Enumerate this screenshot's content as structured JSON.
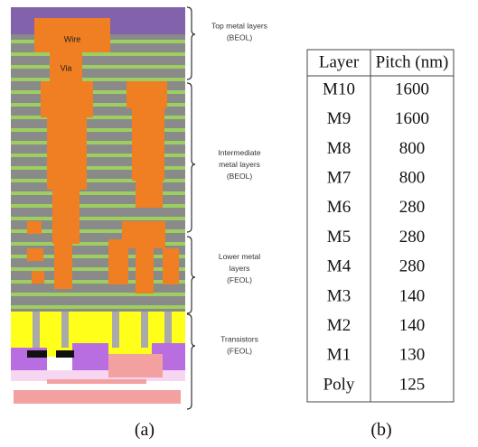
{
  "figure_a": {
    "wire_label": "Wire",
    "via_label": "Via",
    "groups": [
      {
        "lines": [
          "Top metal layers",
          "(BEOL)"
        ]
      },
      {
        "lines": [
          "Intermediate",
          "metal layers",
          "(BEOL)"
        ]
      },
      {
        "lines": [
          "Lower metal",
          "layers",
          "(FEOL)"
        ]
      },
      {
        "lines": [
          "Transistors",
          "(FEOL)"
        ]
      }
    ],
    "caption": "(a)"
  },
  "table": {
    "header": [
      "Layer",
      "Pitch (nm)"
    ],
    "rows": [
      [
        "M10",
        "1600"
      ],
      [
        "M9",
        "1600"
      ],
      [
        "M8",
        "800"
      ],
      [
        "M7",
        "800"
      ],
      [
        "M6",
        "280"
      ],
      [
        "M5",
        "280"
      ],
      [
        "M4",
        "280"
      ],
      [
        "M3",
        "140"
      ],
      [
        "M2",
        "140"
      ],
      [
        "M1",
        "130"
      ],
      [
        "Poly",
        "125"
      ]
    ],
    "caption": "(b)"
  }
}
